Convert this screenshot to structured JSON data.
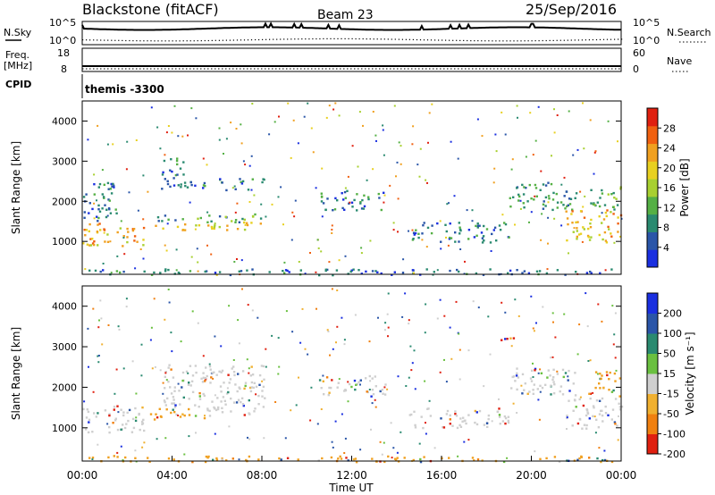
{
  "header": {
    "site": "Blackstone (fitACF)",
    "beam": "Beam 23",
    "date": "25/Sep/2016"
  },
  "noise_panel": {
    "left_label": "N.Sky",
    "right_label": "N.Search",
    "left_ticks": [
      "10^5",
      "10^0"
    ],
    "right_ticks": [
      "10^5",
      "10^0"
    ]
  },
  "freq_panel": {
    "left_label_1": "Freq.",
    "left_label_2": "[MHz]",
    "right_label": "Nave",
    "left_ticks": [
      "18",
      "8"
    ],
    "right_ticks": [
      "60",
      "0"
    ]
  },
  "cpid_panel": {
    "label": "CPID",
    "value": "themis -3300"
  },
  "chart_data": [
    {
      "type": "heatmap",
      "name": "power",
      "ylabel": "Slant Range [km]",
      "ylim": [
        180,
        4500
      ],
      "yticks": [
        1000,
        2000,
        3000,
        4000
      ],
      "colorbar_label": "Power [dB]",
      "colorbar_ticks": [
        4,
        8,
        12,
        16,
        20,
        24,
        28
      ],
      "colorbar_range": [
        0,
        32
      ],
      "colors": [
        "#1a2fe0",
        "#2a55a8",
        "#2a8a70",
        "#55b045",
        "#a8d030",
        "#e8d020",
        "#f0a020",
        "#f06010",
        "#e02010"
      ],
      "regions": [
        {
          "t": [
            0.0,
            2.8
          ],
          "r": [
            900,
            1500
          ],
          "v": 22
        },
        {
          "t": [
            0.0,
            1.5
          ],
          "r": [
            1500,
            2600
          ],
          "v": 6
        },
        {
          "t": [
            3.0,
            8.0
          ],
          "r": [
            1300,
            1500
          ],
          "v": 20
        },
        {
          "t": [
            3.0,
            8.0
          ],
          "r": [
            1500,
            1700
          ],
          "v": 10
        },
        {
          "t": [
            3.5,
            8.2
          ],
          "r": [
            2300,
            2600
          ],
          "v": 7
        },
        {
          "t": [
            3.5,
            4.5
          ],
          "r": [
            2600,
            3200
          ],
          "v": 6
        },
        {
          "t": [
            10.5,
            13.5
          ],
          "r": [
            1800,
            2300
          ],
          "v": 6
        },
        {
          "t": [
            14.5,
            19.0
          ],
          "r": [
            1000,
            1500
          ],
          "v": 6
        },
        {
          "t": [
            19.0,
            22.0
          ],
          "r": [
            1800,
            2500
          ],
          "v": 8
        },
        {
          "t": [
            21.5,
            24.0
          ],
          "r": [
            1000,
            1800
          ],
          "v": 22
        },
        {
          "t": [
            22.5,
            24.0
          ],
          "r": [
            1800,
            2400
          ],
          "v": 12
        },
        {
          "t": [
            0.0,
            24.0
          ],
          "r": [
            180,
            330
          ],
          "v": 5
        }
      ]
    },
    {
      "type": "heatmap",
      "name": "velocity",
      "ylabel": "Slant Range [km]",
      "xlabel": "Time UT",
      "ylim": [
        180,
        4500
      ],
      "yticks": [
        1000,
        2000,
        3000,
        4000
      ],
      "xticks": [
        "00:00",
        "04:00",
        "08:00",
        "12:00",
        "16:00",
        "20:00",
        "00:00"
      ],
      "colorbar_label": "Velocity [m s⁻¹]",
      "colorbar_ticks": [
        "200",
        "100",
        "50",
        "15",
        "-15",
        "-50",
        "-100",
        "-200"
      ],
      "colors": [
        "#1a2fe0",
        "#2a55a8",
        "#2a8a70",
        "#6ac040",
        "#cfcfcf",
        "#f0b030",
        "#f08010",
        "#e02010"
      ],
      "regions": [
        {
          "t": [
            0.0,
            2.8
          ],
          "r": [
            900,
            1600
          ],
          "v": "grey"
        },
        {
          "t": [
            3.0,
            5.5
          ],
          "r": [
            1200,
            1500
          ],
          "v": "orange"
        },
        {
          "t": [
            5.5,
            8.0
          ],
          "r": [
            1300,
            1500
          ],
          "v": "grey"
        },
        {
          "t": [
            3.5,
            8.2
          ],
          "r": [
            1500,
            2600
          ],
          "v": "grey"
        },
        {
          "t": [
            10.5,
            13.5
          ],
          "r": [
            1800,
            2300
          ],
          "v": "grey"
        },
        {
          "t": [
            14.5,
            19.0
          ],
          "r": [
            1000,
            1500
          ],
          "v": "grey"
        },
        {
          "t": [
            19.0,
            22.0
          ],
          "r": [
            1800,
            2500
          ],
          "v": "grey"
        },
        {
          "t": [
            18.5,
            19.2
          ],
          "r": [
            3100,
            3400
          ],
          "v": "red"
        },
        {
          "t": [
            21.5,
            24.0
          ],
          "r": [
            1000,
            1800
          ],
          "v": "grey"
        },
        {
          "t": [
            22.5,
            24.0
          ],
          "r": [
            1800,
            2400
          ],
          "v": "orange"
        },
        {
          "t": [
            0.0,
            24.0
          ],
          "r": [
            180,
            330
          ],
          "v": "orange"
        }
      ]
    }
  ]
}
